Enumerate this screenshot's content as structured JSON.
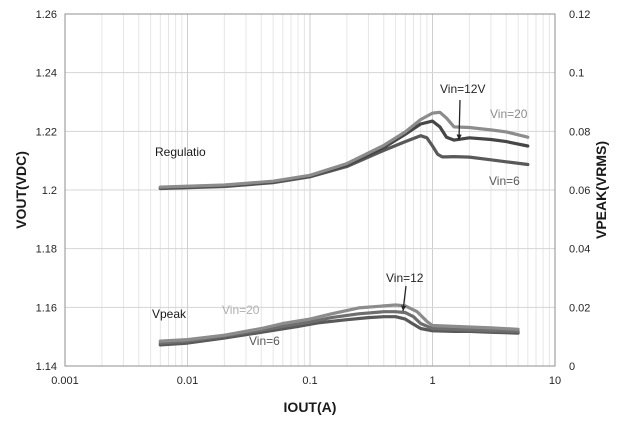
{
  "chart_data": {
    "type": "line",
    "title": "",
    "xlabel": "IOUT(A)",
    "ylabel": "VOUT(VDC)",
    "y2label": "VPEAK(VRMS)",
    "x_scale": "log",
    "xlim": [
      0.001,
      10
    ],
    "ylim": [
      1.14,
      1.26
    ],
    "y2lim": [
      0,
      0.12
    ],
    "grid": true,
    "legend": "none",
    "x_ticks": [
      "0.001",
      "0.01",
      "0.1",
      "1",
      "10"
    ],
    "y_ticks": [
      "1.14",
      "1.16",
      "1.18",
      "1.2",
      "1.22",
      "1.24",
      "1.26"
    ],
    "y2_ticks": [
      "0",
      "0.02",
      "0.04",
      "0.06",
      "0.08",
      "0.1",
      "0.12"
    ],
    "series": [
      {
        "axis": "left",
        "color": "#595959",
        "width": 3.2,
        "x": [
          0.006,
          0.02,
          0.05,
          0.1,
          0.2,
          0.4,
          0.6,
          0.8,
          0.9,
          1.0,
          1.1,
          1.2,
          1.3,
          1.5,
          2,
          3,
          4,
          6
        ],
        "y": [
          1.2005,
          1.2012,
          1.2025,
          1.2045,
          1.208,
          1.2135,
          1.2165,
          1.2185,
          1.2178,
          1.215,
          1.2122,
          1.2113,
          1.2113,
          1.2114,
          1.2112,
          1.2103,
          1.2096,
          1.2087
        ]
      },
      {
        "axis": "left",
        "color": "#464646",
        "width": 3.2,
        "x": [
          0.006,
          0.02,
          0.05,
          0.1,
          0.2,
          0.4,
          0.6,
          0.8,
          1.0,
          1.15,
          1.3,
          1.5,
          2,
          3,
          4,
          6
        ],
        "y": [
          1.2008,
          1.2015,
          1.2028,
          1.2048,
          1.2085,
          1.2145,
          1.219,
          1.2225,
          1.2235,
          1.2215,
          1.218,
          1.217,
          1.2178,
          1.2172,
          1.2165,
          1.215
        ]
      },
      {
        "axis": "left",
        "color": "#8c8c8c",
        "width": 3.2,
        "x": [
          0.006,
          0.02,
          0.05,
          0.1,
          0.2,
          0.4,
          0.6,
          0.8,
          1.0,
          1.15,
          1.3,
          1.5,
          2,
          3,
          4,
          6
        ],
        "y": [
          1.201,
          1.2017,
          1.203,
          1.205,
          1.209,
          1.2152,
          1.2198,
          1.224,
          1.2262,
          1.2265,
          1.2245,
          1.2215,
          1.2213,
          1.2205,
          1.2198,
          1.218
        ]
      },
      {
        "axis": "right",
        "color": "#595959",
        "width": 3.2,
        "x": [
          0.006,
          0.01,
          0.02,
          0.04,
          0.08,
          0.12,
          0.2,
          0.3,
          0.4,
          0.5,
          0.6,
          0.7,
          0.8,
          1.0,
          1.5,
          2,
          3,
          5
        ],
        "y": [
          0.0072,
          0.0078,
          0.0095,
          0.0115,
          0.0135,
          0.0148,
          0.0158,
          0.0165,
          0.0168,
          0.0168,
          0.016,
          0.0142,
          0.0128,
          0.012,
          0.0118,
          0.0118,
          0.0115,
          0.0112
        ]
      },
      {
        "axis": "right",
        "color": "#6e6e6e",
        "width": 3.2,
        "x": [
          0.006,
          0.01,
          0.02,
          0.04,
          0.06,
          0.1,
          0.15,
          0.25,
          0.4,
          0.5,
          0.6,
          0.7,
          0.8,
          1.0,
          1.5,
          2,
          3,
          5
        ],
        "y": [
          0.0078,
          0.0085,
          0.0102,
          0.0122,
          0.0135,
          0.015,
          0.0165,
          0.0178,
          0.0185,
          0.0185,
          0.0182,
          0.0168,
          0.0145,
          0.0128,
          0.0125,
          0.0123,
          0.012,
          0.0118
        ]
      },
      {
        "axis": "right",
        "color": "#8c8c8c",
        "width": 3.2,
        "x": [
          0.006,
          0.01,
          0.02,
          0.04,
          0.06,
          0.1,
          0.15,
          0.25,
          0.4,
          0.5,
          0.6,
          0.75,
          0.9,
          1.0,
          1.5,
          2,
          3,
          5
        ],
        "y": [
          0.0085,
          0.009,
          0.0105,
          0.0128,
          0.0145,
          0.016,
          0.0178,
          0.0198,
          0.0205,
          0.0208,
          0.0205,
          0.0185,
          0.0152,
          0.0138,
          0.0135,
          0.0133,
          0.013,
          0.0125
        ]
      }
    ],
    "annotations": [
      {
        "id": "regulation",
        "text": "Regulatio",
        "color": "#1a1a1a"
      },
      {
        "id": "vpeak",
        "text": "Vpeak",
        "color": "#1a1a1a"
      },
      {
        "id": "vin12v",
        "text": "Vin=12V",
        "color": "#262626"
      },
      {
        "id": "vin20-top",
        "text": "Vin=20",
        "color": "#8c8c8c"
      },
      {
        "id": "vin6-top",
        "text": "Vin=6",
        "color": "#595959"
      },
      {
        "id": "vin12-bottom",
        "text": "Vin=12",
        "color": "#262626"
      },
      {
        "id": "vin20-bottom",
        "text": "Vin=20",
        "color": "#b0b0b0"
      },
      {
        "id": "vin6-bottom",
        "text": "Vin=6",
        "color": "#595959"
      }
    ]
  }
}
